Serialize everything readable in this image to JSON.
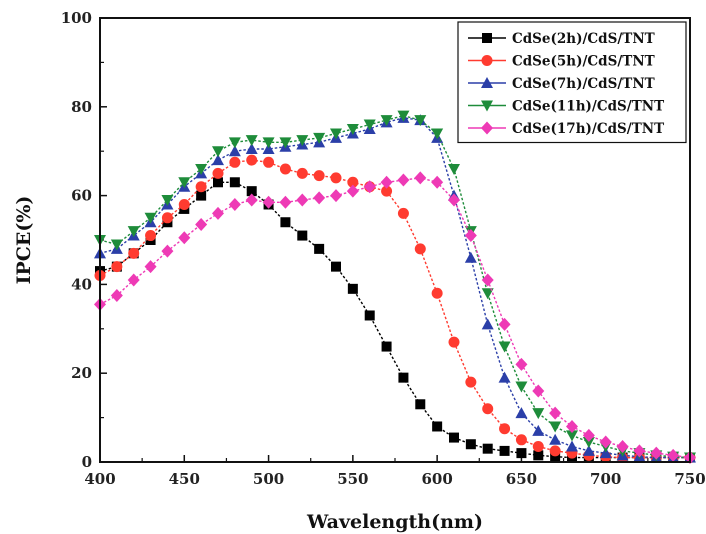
{
  "chart_data": {
    "type": "line",
    "xlabel": "Wavelength(nm)",
    "ylabel": "IPCE(%)",
    "xlim": [
      400,
      750
    ],
    "ylim": [
      0,
      100
    ],
    "xticks": [
      400,
      450,
      500,
      550,
      600,
      650,
      700,
      750
    ],
    "yticks": [
      0,
      20,
      40,
      60,
      80,
      100
    ],
    "legend_position": "top-right",
    "x": [
      400,
      410,
      420,
      430,
      440,
      450,
      460,
      470,
      480,
      490,
      500,
      510,
      520,
      530,
      540,
      550,
      560,
      570,
      580,
      590,
      600,
      610,
      620,
      630,
      640,
      650,
      660,
      670,
      680,
      690,
      700,
      710,
      720,
      730,
      740,
      750
    ],
    "series": [
      {
        "name": "CdSe(2h)/CdS/TNT",
        "color": "#000000",
        "marker": "square",
        "values": [
          43,
          44,
          47,
          50,
          54,
          57,
          60,
          63,
          63,
          61,
          58,
          54,
          51,
          48,
          44,
          39,
          33,
          26,
          19,
          13,
          8,
          5.5,
          4,
          3,
          2.5,
          2,
          1.5,
          1.2,
          1,
          1,
          1,
          1,
          1,
          1,
          1,
          1
        ]
      },
      {
        "name": "CdSe(5h)/CdS/TNT",
        "color": "#ff3b30",
        "marker": "circle",
        "values": [
          42,
          44,
          47,
          51,
          55,
          58,
          62,
          65,
          67.5,
          68,
          67.5,
          66,
          65,
          64.5,
          64,
          63,
          62,
          61,
          56,
          48,
          38,
          27,
          18,
          12,
          7.5,
          5,
          3.5,
          2.5,
          2,
          1.5,
          1.2,
          1,
          1,
          1,
          1,
          1
        ]
      },
      {
        "name": "CdSe(7h)/CdS/TNT",
        "color": "#2b3fa8",
        "marker": "triangle-up",
        "values": [
          47,
          48,
          51,
          54,
          58,
          62,
          65,
          68,
          70,
          70.5,
          70.5,
          71,
          71.5,
          72,
          73,
          74,
          75,
          76.5,
          77.5,
          77,
          73,
          60,
          46,
          31,
          19,
          11,
          7,
          5,
          3.5,
          2.5,
          2,
          1.5,
          1.2,
          1,
          1,
          1
        ]
      },
      {
        "name": "CdSe(11h)/CdS/TNT",
        "color": "#1e8c3a",
        "marker": "triangle-down",
        "values": [
          50,
          49,
          52,
          55,
          59,
          63,
          66,
          70,
          72,
          72.5,
          72,
          72,
          72.5,
          73,
          74,
          75,
          76,
          77,
          78,
          77,
          74,
          66,
          52,
          38,
          26,
          17,
          11,
          8,
          6,
          4.5,
          3.5,
          2.5,
          2,
          1.5,
          1.2,
          1
        ]
      },
      {
        "name": "CdSe(17h)/CdS/TNT",
        "color": "#ee3ab5",
        "marker": "diamond",
        "values": [
          35.5,
          37.5,
          41,
          44,
          47.5,
          50.5,
          53.5,
          56,
          58,
          59,
          58.5,
          58.5,
          59,
          59.5,
          60,
          61,
          62,
          63,
          63.5,
          64,
          63,
          59,
          51,
          41,
          31,
          22,
          16,
          11,
          8,
          6,
          4.5,
          3.5,
          2.5,
          2,
          1.5,
          1
        ]
      }
    ]
  }
}
